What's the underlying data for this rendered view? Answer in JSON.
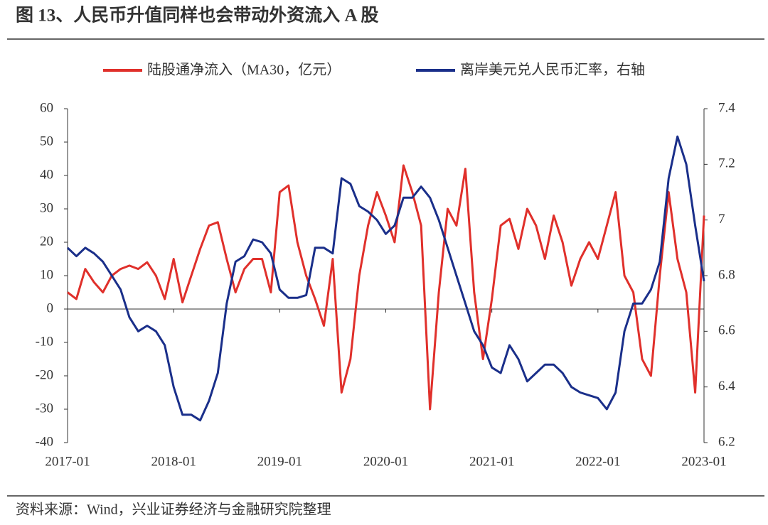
{
  "chart_data": {
    "type": "line",
    "title": "图 13、人民币升值同样也会带动外资流入 A 股",
    "source": "资料来源：Wind，兴业证券经济与金融研究院整理",
    "x": [
      "2017-01",
      "2017-02",
      "2017-03",
      "2017-04",
      "2017-05",
      "2017-06",
      "2017-07",
      "2017-08",
      "2017-09",
      "2017-10",
      "2017-11",
      "2017-12",
      "2018-01",
      "2018-02",
      "2018-03",
      "2018-04",
      "2018-05",
      "2018-06",
      "2018-07",
      "2018-08",
      "2018-09",
      "2018-10",
      "2018-11",
      "2018-12",
      "2019-01",
      "2019-02",
      "2019-03",
      "2019-04",
      "2019-05",
      "2019-06",
      "2019-07",
      "2019-08",
      "2019-09",
      "2019-10",
      "2019-11",
      "2019-12",
      "2020-01",
      "2020-02",
      "2020-03",
      "2020-04",
      "2020-05",
      "2020-06",
      "2020-07",
      "2020-08",
      "2020-09",
      "2020-10",
      "2020-11",
      "2020-12",
      "2021-01",
      "2021-02",
      "2021-03",
      "2021-04",
      "2021-05",
      "2021-06",
      "2021-07",
      "2021-08",
      "2021-09",
      "2021-10",
      "2021-11",
      "2021-12",
      "2022-01",
      "2022-02",
      "2022-03",
      "2022-04",
      "2022-05",
      "2022-06",
      "2022-07",
      "2022-08",
      "2022-09",
      "2022-10",
      "2022-11",
      "2022-12",
      "2023-01"
    ],
    "xlim": [
      "2017-01",
      "2023-01"
    ],
    "xticks": [
      "2017-01",
      "2018-01",
      "2019-01",
      "2020-01",
      "2021-01",
      "2022-01",
      "2023-01"
    ],
    "ylim": [
      -40,
      60
    ],
    "yticks": [
      -40,
      -30,
      -20,
      -10,
      0,
      10,
      20,
      30,
      40,
      50,
      60
    ],
    "y2lim": [
      6.2,
      7.4
    ],
    "y2ticks": [
      6.2,
      6.4,
      6.6,
      6.8,
      7,
      7.2,
      7.4
    ],
    "series": [
      {
        "name": "陆股通净流入（MA30，亿元）",
        "color": "#e0302b",
        "values": [
          5,
          3,
          12,
          8,
          5,
          10,
          12,
          13,
          12,
          14,
          10,
          3,
          15,
          2,
          10,
          18,
          25,
          26,
          15,
          5,
          12,
          15,
          15,
          5,
          35,
          37,
          20,
          10,
          3,
          -5,
          15,
          -25,
          -15,
          10,
          25,
          35,
          28,
          20,
          43,
          35,
          25,
          -30,
          5,
          30,
          25,
          42,
          5,
          -15,
          3,
          25,
          27,
          18,
          30,
          25,
          15,
          28,
          20,
          7,
          15,
          20,
          15,
          25,
          35,
          10,
          5,
          -15,
          -20,
          10,
          35,
          15,
          5,
          -25,
          28
        ]
      },
      {
        "name": "离岸美元兑人民币汇率，右轴",
        "color": "#1a2f8a",
        "axis": "y2",
        "values": [
          6.9,
          6.87,
          6.9,
          6.88,
          6.85,
          6.8,
          6.75,
          6.65,
          6.6,
          6.62,
          6.6,
          6.55,
          6.4,
          6.3,
          6.3,
          6.28,
          6.35,
          6.45,
          6.7,
          6.85,
          6.87,
          6.93,
          6.92,
          6.88,
          6.75,
          6.72,
          6.72,
          6.73,
          6.9,
          6.9,
          6.88,
          7.15,
          7.13,
          7.05,
          7.03,
          7.0,
          6.95,
          6.98,
          7.08,
          7.08,
          7.12,
          7.08,
          7.0,
          6.9,
          6.8,
          6.7,
          6.6,
          6.55,
          6.47,
          6.45,
          6.55,
          6.5,
          6.42,
          6.45,
          6.48,
          6.48,
          6.45,
          6.4,
          6.38,
          6.37,
          6.36,
          6.32,
          6.38,
          6.6,
          6.7,
          6.7,
          6.75,
          6.85,
          7.15,
          7.3,
          7.2,
          6.98,
          6.78
        ]
      }
    ]
  }
}
